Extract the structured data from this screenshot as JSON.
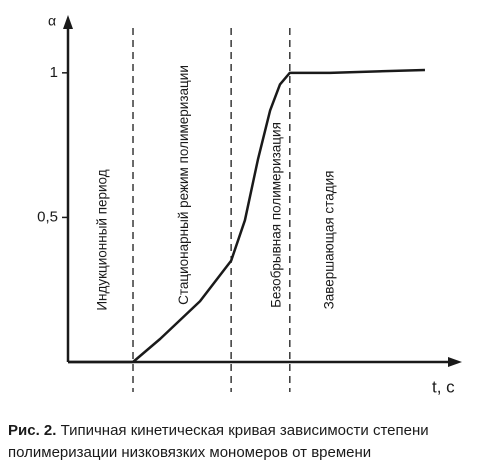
{
  "chart_data": {
    "type": "line",
    "y_label": "α",
    "x_label": "t, c",
    "xlim": [
      0,
      100
    ],
    "ylim": [
      0,
      1.2
    ],
    "yticks": [
      {
        "value": 0.5,
        "label": "0,5"
      },
      1
    ],
    "x": [
      0,
      16.5,
      23.4,
      33.5,
      41.4,
      44.9,
      48.2,
      51.3,
      53.8,
      56.3,
      66.5,
      90.6
    ],
    "series": [
      {
        "color": "#1a1a1a",
        "values": [
          0,
          0,
          0.08,
          0.21,
          0.35,
          0.49,
          0.7,
          0.87,
          0.96,
          1.0,
          1.0,
          1.01
        ]
      }
    ],
    "dividers": [
      16.5,
      41.4,
      56.3
    ],
    "stages": [
      {
        "label": "Индукционный период",
        "center": 8.3
      },
      {
        "label": "Стационарный режим полимеризации",
        "center": 29
      },
      {
        "label": "Безобрывная полимеризация",
        "center": 52.5
      },
      {
        "label": "Завершающая стадия",
        "center": 66
      }
    ],
    "caption": {
      "bold": "Рис. 2.",
      "text": "Типичная кинетическая кривая зависимости степени полимеризации низковязких мономеров от времени"
    }
  }
}
